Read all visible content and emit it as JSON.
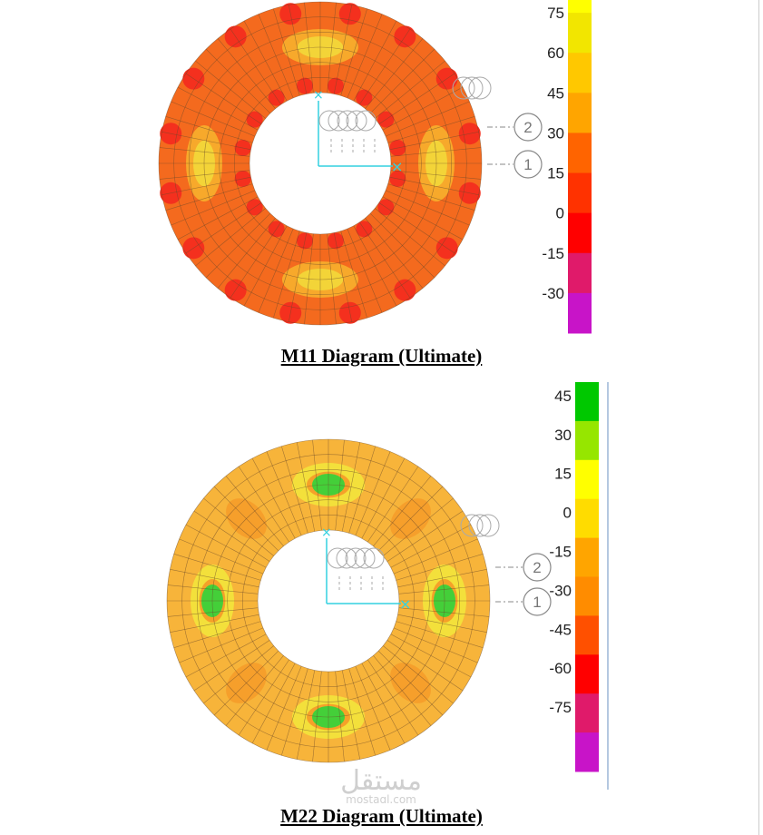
{
  "figures": [
    {
      "id": "m11",
      "caption": "M11 Diagram (Ultimate)",
      "colorbar": {
        "ticks": [
          "75",
          "60",
          "45",
          "30",
          "15",
          "0",
          "-15",
          "-30"
        ],
        "bands": [
          "#ffff00",
          "#f2e600",
          "#ffc800",
          "#ffa500",
          "#ff6400",
          "#ff3200",
          "#ff0000",
          "#e01a6a",
          "#c814c8"
        ]
      },
      "ring_base_color": "#f46a1e",
      "highlight_colors": [
        "#f7b02c",
        "#f2d83a"
      ],
      "hotspot_color": "#f4301e",
      "axis_labels": [
        "2",
        "1"
      ]
    },
    {
      "id": "m22",
      "caption": "M22 Diagram (Ultimate)",
      "colorbar": {
        "ticks": [
          "45",
          "30",
          "15",
          "0",
          "-15",
          "-30",
          "-45",
          "-60",
          "-75"
        ],
        "bands": [
          "#00c800",
          "#96e600",
          "#ffff00",
          "#ffdc00",
          "#ffa500",
          "#ff8c00",
          "#ff5000",
          "#ff0000",
          "#e01a6a",
          "#c814c8"
        ]
      },
      "ring_base_color": "#f7b43a",
      "highlight_colors": [
        "#f2e43c",
        "#f59a28"
      ],
      "hotspot_color": "#3ad23a",
      "axis_labels": [
        "2",
        "1"
      ]
    }
  ],
  "watermark": {
    "arabic": "مستقل",
    "latin": "mostaql.com"
  }
}
